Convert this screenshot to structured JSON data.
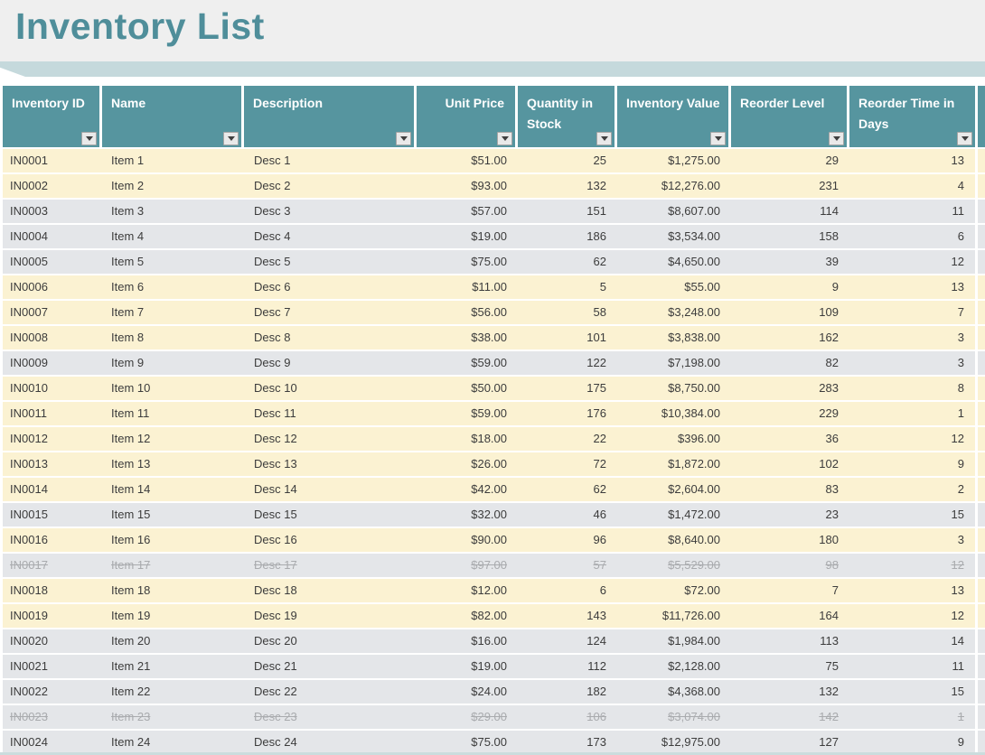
{
  "title": "Inventory List",
  "colors": {
    "title_text": "#4F8E9A",
    "title_background": "#EFEFEF",
    "ribbon": "#C5D9DC",
    "header_background": "#56959F",
    "header_text": "#FFFFFF",
    "row_cream": "#FBF2D2",
    "row_gray": "#E4E6E9",
    "row_text": "#3C3C3C",
    "struck_row_text": "#A9ABAE"
  },
  "table": {
    "columns": [
      {
        "label": "Inventory ID"
      },
      {
        "label": "Name"
      },
      {
        "label": "Description"
      },
      {
        "label": "Unit Price"
      },
      {
        "label": "Quantity in Stock"
      },
      {
        "label": "Inventory Value"
      },
      {
        "label": "Reorder Level"
      },
      {
        "label": "Reorder Time in Days"
      }
    ],
    "partial_column_visible": true,
    "rows": [
      {
        "id": "IN0001",
        "name": "Item 1",
        "desc": "Desc 1",
        "price": "$51.00",
        "qty": "25",
        "value": "$1,275.00",
        "level": "29",
        "days": "13",
        "shade": "cream",
        "struck": false
      },
      {
        "id": "IN0002",
        "name": "Item 2",
        "desc": "Desc 2",
        "price": "$93.00",
        "qty": "132",
        "value": "$12,276.00",
        "level": "231",
        "days": "4",
        "shade": "cream",
        "struck": false
      },
      {
        "id": "IN0003",
        "name": "Item 3",
        "desc": "Desc 3",
        "price": "$57.00",
        "qty": "151",
        "value": "$8,607.00",
        "level": "114",
        "days": "11",
        "shade": "gray",
        "struck": false
      },
      {
        "id": "IN0004",
        "name": "Item 4",
        "desc": "Desc 4",
        "price": "$19.00",
        "qty": "186",
        "value": "$3,534.00",
        "level": "158",
        "days": "6",
        "shade": "gray",
        "struck": false
      },
      {
        "id": "IN0005",
        "name": "Item 5",
        "desc": "Desc 5",
        "price": "$75.00",
        "qty": "62",
        "value": "$4,650.00",
        "level": "39",
        "days": "12",
        "shade": "gray",
        "struck": false
      },
      {
        "id": "IN0006",
        "name": "Item 6",
        "desc": "Desc 6",
        "price": "$11.00",
        "qty": "5",
        "value": "$55.00",
        "level": "9",
        "days": "13",
        "shade": "cream",
        "struck": false
      },
      {
        "id": "IN0007",
        "name": "Item 7",
        "desc": "Desc 7",
        "price": "$56.00",
        "qty": "58",
        "value": "$3,248.00",
        "level": "109",
        "days": "7",
        "shade": "cream",
        "struck": false
      },
      {
        "id": "IN0008",
        "name": "Item 8",
        "desc": "Desc 8",
        "price": "$38.00",
        "qty": "101",
        "value": "$3,838.00",
        "level": "162",
        "days": "3",
        "shade": "cream",
        "struck": false
      },
      {
        "id": "IN0009",
        "name": "Item 9",
        "desc": "Desc 9",
        "price": "$59.00",
        "qty": "122",
        "value": "$7,198.00",
        "level": "82",
        "days": "3",
        "shade": "gray",
        "struck": false
      },
      {
        "id": "IN0010",
        "name": "Item 10",
        "desc": "Desc 10",
        "price": "$50.00",
        "qty": "175",
        "value": "$8,750.00",
        "level": "283",
        "days": "8",
        "shade": "cream",
        "struck": false
      },
      {
        "id": "IN0011",
        "name": "Item 11",
        "desc": "Desc 11",
        "price": "$59.00",
        "qty": "176",
        "value": "$10,384.00",
        "level": "229",
        "days": "1",
        "shade": "cream",
        "struck": false
      },
      {
        "id": "IN0012",
        "name": "Item 12",
        "desc": "Desc 12",
        "price": "$18.00",
        "qty": "22",
        "value": "$396.00",
        "level": "36",
        "days": "12",
        "shade": "cream",
        "struck": false
      },
      {
        "id": "IN0013",
        "name": "Item 13",
        "desc": "Desc 13",
        "price": "$26.00",
        "qty": "72",
        "value": "$1,872.00",
        "level": "102",
        "days": "9",
        "shade": "cream",
        "struck": false
      },
      {
        "id": "IN0014",
        "name": "Item 14",
        "desc": "Desc 14",
        "price": "$42.00",
        "qty": "62",
        "value": "$2,604.00",
        "level": "83",
        "days": "2",
        "shade": "cream",
        "struck": false
      },
      {
        "id": "IN0015",
        "name": "Item 15",
        "desc": "Desc 15",
        "price": "$32.00",
        "qty": "46",
        "value": "$1,472.00",
        "level": "23",
        "days": "15",
        "shade": "gray",
        "struck": false
      },
      {
        "id": "IN0016",
        "name": "Item 16",
        "desc": "Desc 16",
        "price": "$90.00",
        "qty": "96",
        "value": "$8,640.00",
        "level": "180",
        "days": "3",
        "shade": "cream",
        "struck": false
      },
      {
        "id": "IN0017",
        "name": "Item 17",
        "desc": "Desc 17",
        "price": "$97.00",
        "qty": "57",
        "value": "$5,529.00",
        "level": "98",
        "days": "12",
        "shade": "gray",
        "struck": true
      },
      {
        "id": "IN0018",
        "name": "Item 18",
        "desc": "Desc 18",
        "price": "$12.00",
        "qty": "6",
        "value": "$72.00",
        "level": "7",
        "days": "13",
        "shade": "cream",
        "struck": false
      },
      {
        "id": "IN0019",
        "name": "Item 19",
        "desc": "Desc 19",
        "price": "$82.00",
        "qty": "143",
        "value": "$11,726.00",
        "level": "164",
        "days": "12",
        "shade": "cream",
        "struck": false
      },
      {
        "id": "IN0020",
        "name": "Item 20",
        "desc": "Desc 20",
        "price": "$16.00",
        "qty": "124",
        "value": "$1,984.00",
        "level": "113",
        "days": "14",
        "shade": "gray",
        "struck": false
      },
      {
        "id": "IN0021",
        "name": "Item 21",
        "desc": "Desc 21",
        "price": "$19.00",
        "qty": "112",
        "value": "$2,128.00",
        "level": "75",
        "days": "11",
        "shade": "gray",
        "struck": false
      },
      {
        "id": "IN0022",
        "name": "Item 22",
        "desc": "Desc 22",
        "price": "$24.00",
        "qty": "182",
        "value": "$4,368.00",
        "level": "132",
        "days": "15",
        "shade": "gray",
        "struck": false
      },
      {
        "id": "IN0023",
        "name": "Item 23",
        "desc": "Desc 23",
        "price": "$29.00",
        "qty": "106",
        "value": "$3,074.00",
        "level": "142",
        "days": "1",
        "shade": "gray",
        "struck": true
      },
      {
        "id": "IN0024",
        "name": "Item 24",
        "desc": "Desc 24",
        "price": "$75.00",
        "qty": "173",
        "value": "$12,975.00",
        "level": "127",
        "days": "9",
        "shade": "gray",
        "struck": false
      }
    ]
  }
}
